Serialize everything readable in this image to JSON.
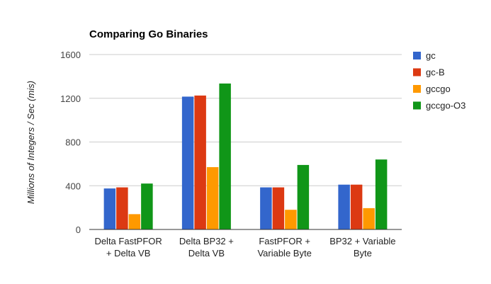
{
  "chart_data": {
    "type": "bar",
    "title": "Comparing Go Binaries",
    "xlabel": "",
    "ylabel": "Millions of Integers / Sec (mis)",
    "ylim": [
      0,
      1600
    ],
    "yticks": [
      0,
      400,
      800,
      1200,
      1600
    ],
    "grid": true,
    "legend_position": "right",
    "categories": [
      [
        "Delta FastPFOR",
        "+ Delta VB"
      ],
      [
        "Delta BP32 +",
        "Delta VB"
      ],
      [
        "FastPFOR +",
        "Variable Byte"
      ],
      [
        "BP32 + Variable",
        "Byte"
      ]
    ],
    "series": [
      {
        "name": "gc",
        "color": "#3366cc",
        "values": [
          375,
          1215,
          385,
          410
        ]
      },
      {
        "name": "gc-B",
        "color": "#dc3912",
        "values": [
          385,
          1225,
          385,
          410
        ]
      },
      {
        "name": "gccgo",
        "color": "#ff9900",
        "values": [
          140,
          570,
          180,
          195
        ]
      },
      {
        "name": "gccgo-O3",
        "color": "#109618",
        "values": [
          420,
          1335,
          590,
          640
        ]
      }
    ]
  }
}
